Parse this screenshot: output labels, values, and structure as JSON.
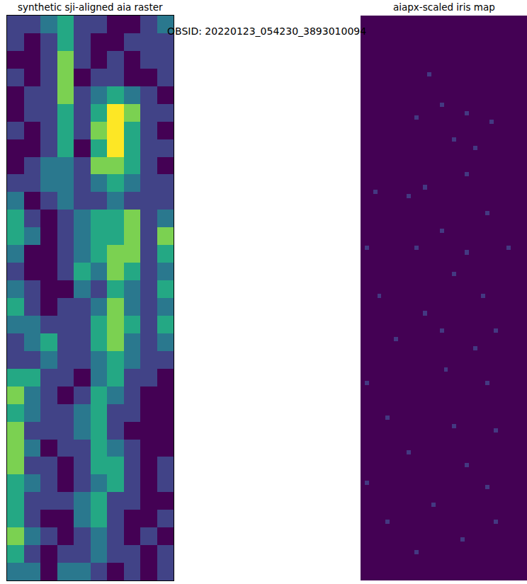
{
  "title": "OBSID: 20220123_054230_3893010094",
  "chart_data": [
    {
      "type": "heatmap",
      "title": "synthetic sji-aligned aia raster",
      "color": "Viridis",
      "tick_labels": false,
      "xlim": [
        -0.5,
        9.5
      ],
      "ylim": [
        31.5,
        -0.5
      ],
      "zlim": [
        2,
        7
      ],
      "z": [
        [
          3,
          3,
          4,
          5,
          3,
          3,
          2,
          2,
          3,
          4
        ],
        [
          3,
          2,
          3,
          5,
          3,
          2,
          2,
          3,
          3,
          3
        ],
        [
          2,
          2,
          3,
          6,
          3,
          2,
          3,
          2,
          3,
          3
        ],
        [
          3,
          2,
          3,
          6,
          2,
          3,
          3,
          2,
          2,
          3
        ],
        [
          2,
          3,
          3,
          6,
          3,
          4,
          5,
          4,
          3,
          2
        ],
        [
          2,
          3,
          3,
          5,
          3,
          5,
          7,
          6,
          3,
          3
        ],
        [
          3,
          2,
          3,
          5,
          3,
          6,
          7,
          5,
          3,
          2
        ],
        [
          2,
          2,
          3,
          5,
          2,
          5,
          7,
          5,
          3,
          3
        ],
        [
          2,
          3,
          4,
          4,
          3,
          6,
          6,
          5,
          3,
          2
        ],
        [
          3,
          3,
          4,
          4,
          3,
          4,
          5,
          4,
          3,
          3
        ],
        [
          4,
          2,
          3,
          4,
          3,
          3,
          4,
          3,
          3,
          3
        ],
        [
          5,
          3,
          2,
          3,
          4,
          5,
          5,
          6,
          3,
          4
        ],
        [
          5,
          4,
          2,
          3,
          4,
          5,
          5,
          6,
          3,
          6
        ],
        [
          4,
          2,
          2,
          3,
          4,
          5,
          6,
          6,
          3,
          5
        ],
        [
          3,
          2,
          2,
          3,
          5,
          4,
          6,
          5,
          3,
          4
        ],
        [
          4,
          3,
          2,
          2,
          4,
          3,
          5,
          4,
          3,
          5
        ],
        [
          5,
          3,
          2,
          3,
          3,
          4,
          6,
          4,
          3,
          4
        ],
        [
          4,
          4,
          3,
          3,
          3,
          5,
          6,
          5,
          3,
          5
        ],
        [
          3,
          4,
          5,
          3,
          3,
          5,
          6,
          4,
          3,
          4
        ],
        [
          3,
          3,
          4,
          3,
          3,
          4,
          5,
          4,
          3,
          3
        ],
        [
          5,
          5,
          3,
          3,
          2,
          4,
          5,
          3,
          3,
          2
        ],
        [
          6,
          4,
          3,
          2,
          3,
          5,
          4,
          3,
          2,
          2
        ],
        [
          5,
          4,
          3,
          3,
          4,
          5,
          3,
          3,
          2,
          2
        ],
        [
          6,
          3,
          3,
          3,
          4,
          5,
          3,
          2,
          2,
          2
        ],
        [
          6,
          4,
          2,
          3,
          3,
          5,
          4,
          3,
          2,
          2
        ],
        [
          6,
          3,
          3,
          2,
          3,
          5,
          5,
          3,
          2,
          3
        ],
        [
          5,
          4,
          3,
          2,
          3,
          4,
          5,
          3,
          2,
          3
        ],
        [
          5,
          3,
          3,
          3,
          4,
          5,
          3,
          3,
          2,
          2
        ],
        [
          5,
          3,
          2,
          2,
          4,
          5,
          3,
          2,
          2,
          3
        ],
        [
          6,
          4,
          3,
          2,
          3,
          4,
          3,
          2,
          3,
          2
        ],
        [
          5,
          3,
          2,
          3,
          3,
          4,
          3,
          3,
          2,
          3
        ],
        [
          4,
          4,
          2,
          4,
          4,
          3,
          2,
          3,
          2,
          3
        ]
      ]
    },
    {
      "type": "heatmap",
      "title": "aiapx-scaled iris map",
      "color": "Viridis",
      "tick_labels": false,
      "xlim": [
        -0.5,
        39.5
      ],
      "ylim": [
        129.5,
        -0.5
      ],
      "zlim": [
        0,
        12
      ],
      "shape": {
        "rows": 130,
        "cols": 40
      },
      "fill": 0,
      "cells": [
        [
          13,
          16,
          2
        ],
        [
          20,
          19,
          2
        ],
        [
          22,
          25,
          2
        ],
        [
          23,
          13,
          2
        ],
        [
          24,
          31,
          2
        ],
        [
          28,
          22,
          2
        ],
        [
          30,
          27,
          2
        ],
        [
          39,
          15,
          2
        ],
        [
          36,
          25,
          2
        ],
        [
          40,
          3,
          2
        ],
        [
          41,
          11,
          2
        ],
        [
          45,
          30,
          2
        ],
        [
          49,
          19,
          2
        ],
        [
          53,
          1,
          2
        ],
        [
          53,
          13,
          2
        ],
        [
          54,
          25,
          2
        ],
        [
          53,
          35,
          2
        ],
        [
          59,
          22,
          2
        ],
        [
          64,
          29,
          2
        ],
        [
          68,
          15,
          2
        ],
        [
          64,
          4,
          2
        ],
        [
          72,
          32,
          2
        ],
        [
          74,
          8,
          2
        ],
        [
          76,
          27,
          2
        ],
        [
          81,
          20,
          2
        ],
        [
          84,
          1,
          2
        ],
        [
          84,
          30,
          2
        ],
        [
          92,
          6,
          2
        ],
        [
          94,
          22,
          2
        ],
        [
          95,
          32,
          2
        ],
        [
          100,
          11,
          2
        ],
        [
          103,
          25,
          2
        ],
        [
          107,
          1,
          2
        ],
        [
          108,
          30,
          2
        ],
        [
          112,
          17,
          2
        ],
        [
          116,
          6,
          2
        ],
        [
          120,
          24,
          2
        ],
        [
          123,
          13,
          2
        ],
        [
          116,
          32,
          2
        ],
        [
          72,
          19,
          2
        ]
      ]
    }
  ]
}
